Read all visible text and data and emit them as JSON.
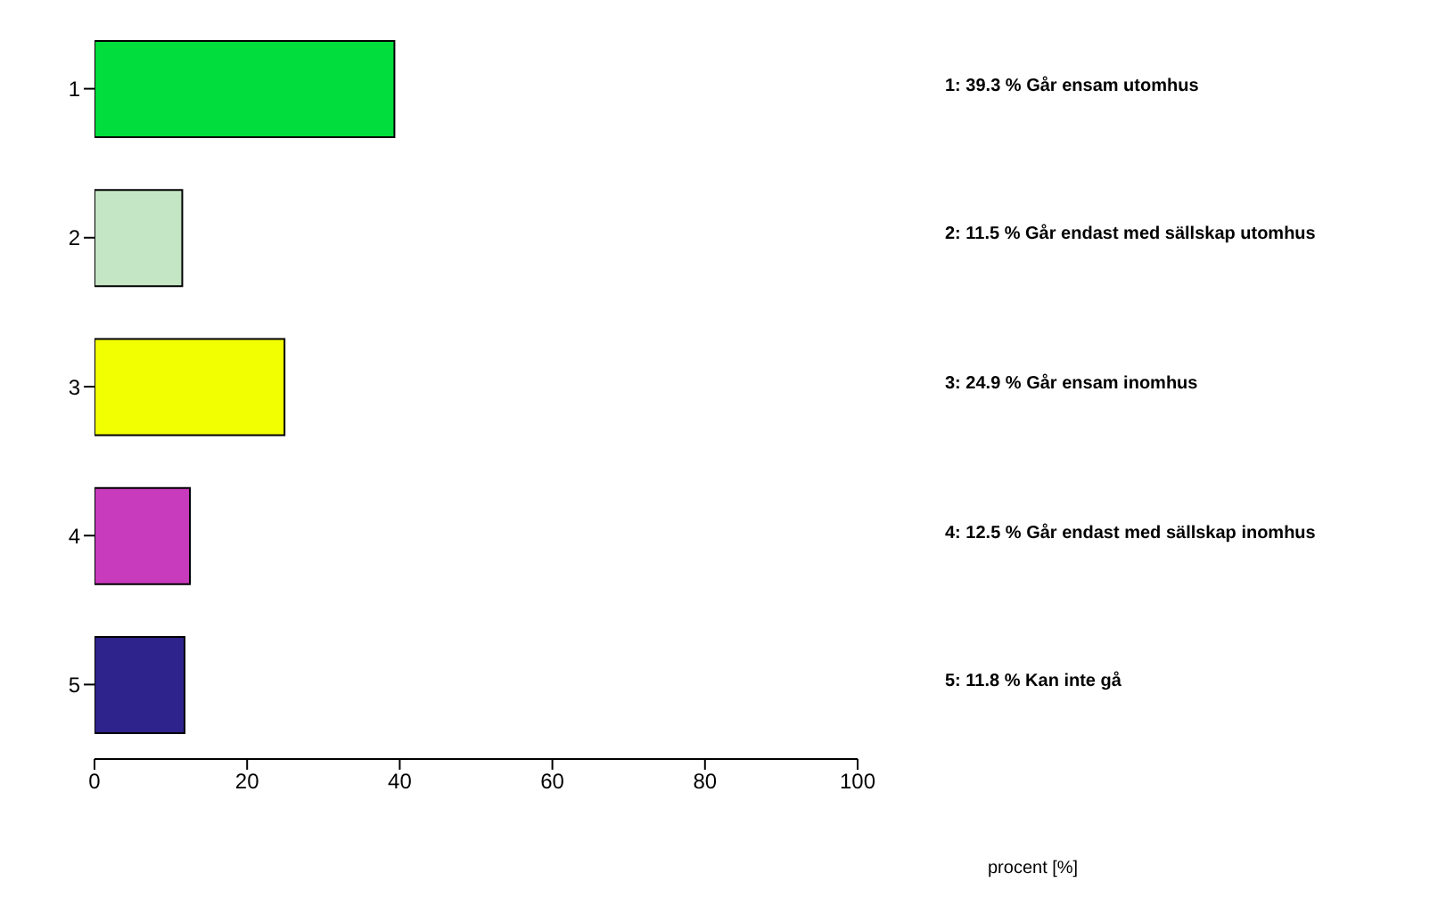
{
  "chart_data": {
    "type": "bar",
    "orientation": "horizontal",
    "categories": [
      "1",
      "2",
      "3",
      "4",
      "5"
    ],
    "values": [
      39.3,
      11.5,
      24.9,
      12.5,
      11.8
    ],
    "colors": [
      "#00dd3c",
      "#c4e6c4",
      "#f2ff00",
      "#c83bbc",
      "#2e238c"
    ],
    "annotations": [
      "1: 39.3 % Går ensam utomhus",
      "2: 11.5 % Går endast med sällskap utomhus",
      "3: 24.9 % Går ensam inomhus",
      "4: 12.5 % Går endast med sällskap inomhus",
      "5: 11.8 % Kan inte gå",
      "procent [%]"
    ],
    "xlim": [
      0,
      100
    ],
    "xticks": [
      0,
      20,
      40,
      60,
      80,
      100
    ],
    "grid": false
  }
}
